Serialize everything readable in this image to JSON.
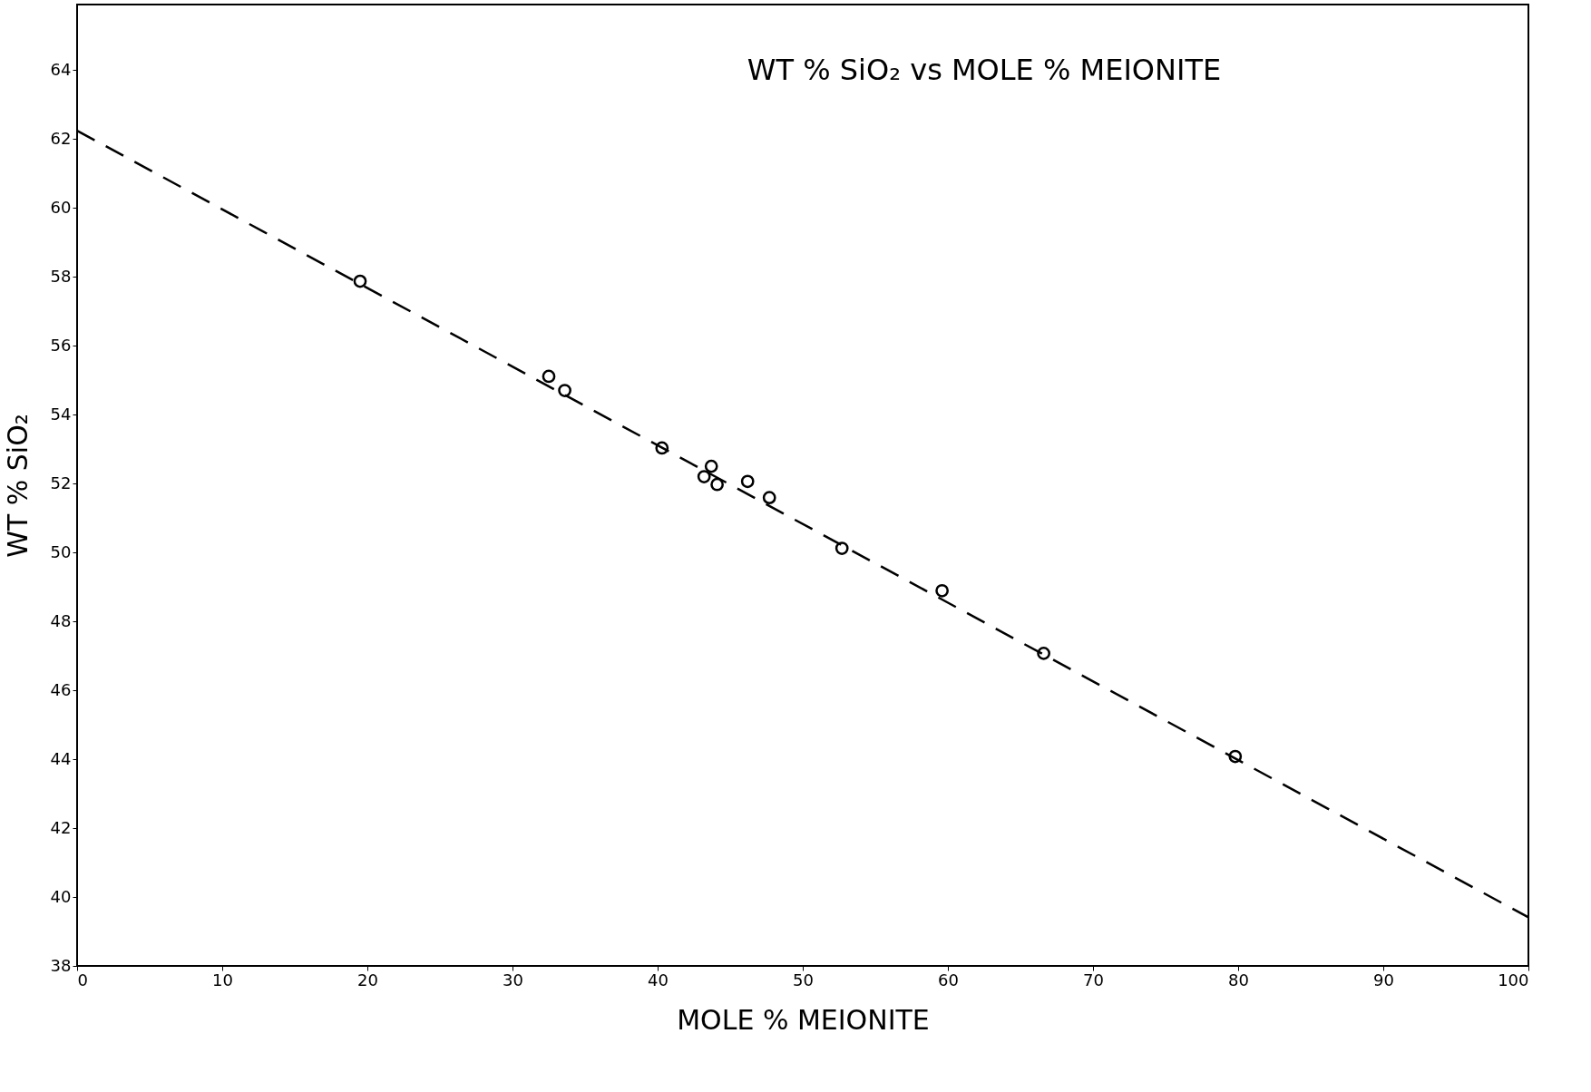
{
  "chart_data": {
    "type": "scatter",
    "title": "WT % SiO₂ vs MOLE % MEIONITE",
    "xlabel": "MOLE % MEIONITE",
    "ylabel": "WT % SiO₂",
    "xlim": [
      0,
      100
    ],
    "ylim": [
      38,
      65.9
    ],
    "xticks": [
      0,
      10,
      20,
      30,
      40,
      50,
      60,
      70,
      80,
      90,
      100
    ],
    "yticks": [
      38,
      40,
      42,
      44,
      46,
      48,
      50,
      52,
      54,
      56,
      58,
      60,
      62,
      64
    ],
    "grid": false,
    "series": [
      {
        "color": "#000000",
        "marker": "circle",
        "x": [
          19.5,
          32.5,
          33.6,
          40.3,
          43.7,
          43.2,
          44.1,
          46.2,
          47.7,
          52.7,
          59.6,
          66.6,
          79.8
        ],
        "values": [
          57.87,
          55.11,
          54.7,
          53.03,
          52.5,
          52.2,
          51.97,
          52.06,
          51.59,
          50.12,
          48.89,
          47.07,
          44.08
        ]
      },
      {
        "type": "line",
        "color": "#000000",
        "line_style": "dashed",
        "marker": "none",
        "x": [
          0,
          100
        ],
        "values": [
          62.24,
          39.41
        ]
      }
    ]
  }
}
